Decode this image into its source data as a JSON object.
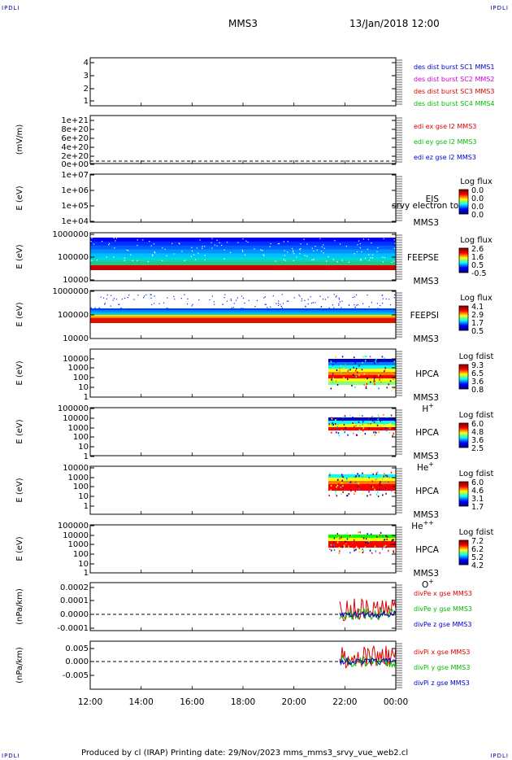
{
  "header": {
    "corner_label": "IPDLI",
    "spacecraft": "MMS3",
    "datetime": "13/Jan/2018 12:00"
  },
  "footer": {
    "text": "Produced by cl (IRAP)   Printing date: 29/Nov/2023   mms_mms3_srvy_vue_web2.cl"
  },
  "chart_data": [
    {
      "id": "panel1",
      "type": "line",
      "yticks": [
        "4",
        "3",
        "2",
        "1"
      ],
      "legend": [
        {
          "text": "des dist burst SC1 MMS1",
          "color": "#0000cc"
        },
        {
          "text": "des dist burst SC2 MMS2",
          "color": "#cc00cc"
        },
        {
          "text": "des dist burst SC3 MMS3",
          "color": "#dd0000"
        },
        {
          "text": "des dist burst SC4 MMS4",
          "color": "#00bb00"
        }
      ]
    },
    {
      "id": "panel2",
      "type": "line",
      "ylabel": "(mV/m)",
      "yticks": [
        "1e+21",
        "8e+20",
        "6e+20",
        "4e+20",
        "2e+20",
        "0e+00"
      ],
      "legend": [
        {
          "text": "edi ex gse l2 MMS3",
          "color": "#dd0000"
        },
        {
          "text": "edi ey gse l2 MMS3",
          "color": "#00bb00"
        },
        {
          "text": "edi ez gse l2 MMS3",
          "color": "#0000cc"
        }
      ]
    },
    {
      "id": "panel3",
      "type": "heatmap",
      "ylabel": "E (eV)",
      "yticks": [
        "1e+07",
        "1e+06",
        "1e+05",
        "1e+04"
      ],
      "instrument": [
        "EIS",
        "MMS3"
      ],
      "overlay": "srvy electron to",
      "colorbar": {
        "title": "Log flux",
        "ticks": [
          "0.0",
          "0.0",
          "0.0",
          "0.0"
        ]
      }
    },
    {
      "id": "panel4",
      "type": "heatmap",
      "ylabel": "E (eV)",
      "yticks": [
        "1000000",
        "100000",
        "10000"
      ],
      "instrument": [
        "FEEPSE",
        "MMS3"
      ],
      "colorbar": {
        "title": "Log flux",
        "ticks": [
          "2.6",
          "1.6",
          "0.5",
          "-0.5"
        ]
      }
    },
    {
      "id": "panel5",
      "type": "heatmap",
      "ylabel": "E (eV)",
      "yticks": [
        "1000000",
        "100000",
        "10000"
      ],
      "instrument": [
        "FEEPSI",
        "MMS3"
      ],
      "colorbar": {
        "title": "Log flux",
        "ticks": [
          "4.1",
          "2.9",
          "1.7",
          "0.5"
        ]
      }
    },
    {
      "id": "panel6",
      "type": "heatmap",
      "ylabel": "E (eV)",
      "yticks": [
        "10000",
        "1000",
        "100",
        "10",
        "1"
      ],
      "instrument": [
        "HPCA",
        "MMS3"
      ],
      "species": "H",
      "charge": "+",
      "colorbar": {
        "title": "Log fdist",
        "ticks": [
          "9.3",
          "6.5",
          "3.6",
          "0.8"
        ]
      }
    },
    {
      "id": "panel7",
      "type": "heatmap",
      "ylabel": "E (eV)",
      "yticks": [
        "100000",
        "10000",
        "1000",
        "100",
        "10",
        "1"
      ],
      "instrument": [
        "HPCA",
        "MMS3"
      ],
      "species": "He",
      "charge": "+",
      "colorbar": {
        "title": "Log fdist",
        "ticks": [
          "6.0",
          "4.8",
          "3.6",
          "2.5"
        ]
      }
    },
    {
      "id": "panel8",
      "type": "heatmap",
      "ylabel": "E (eV)",
      "yticks": [
        "10000",
        "1000",
        "100",
        "10",
        "1"
      ],
      "instrument": [
        "HPCA",
        "MMS3"
      ],
      "species": "He",
      "charge": "++",
      "colorbar": {
        "title": "Log fdist",
        "ticks": [
          "6.0",
          "4.6",
          "3.1",
          "1.7"
        ]
      }
    },
    {
      "id": "panel9",
      "type": "heatmap",
      "ylabel": "E (eV)",
      "yticks": [
        "100000",
        "10000",
        "1000",
        "100",
        "10",
        "1"
      ],
      "instrument": [
        "HPCA",
        "MMS3"
      ],
      "species": "O",
      "charge": "+",
      "colorbar": {
        "title": "Log fdist",
        "ticks": [
          "7.2",
          "6.2",
          "5.2",
          "4.2"
        ]
      }
    },
    {
      "id": "panel10",
      "type": "line",
      "ylabel": "(nPa/km)",
      "yticks": [
        "0.0002",
        "0.0001",
        "0.0000",
        "-0.0001"
      ],
      "legend": [
        {
          "text": "divPe x gse MMS3",
          "color": "#dd0000"
        },
        {
          "text": "divPe y gse MMS3",
          "color": "#00bb00"
        },
        {
          "text": "divPe z gse MMS3",
          "color": "#0000cc"
        }
      ]
    },
    {
      "id": "panel11",
      "type": "line",
      "ylabel": "(nPa/km)",
      "yticks": [
        "0.005",
        "0.000",
        "-0.005"
      ],
      "legend": [
        {
          "text": "divPi x gse MMS3",
          "color": "#dd0000"
        },
        {
          "text": "divPi y gse MMS3",
          "color": "#00bb00"
        },
        {
          "text": "divPi z gse MMS3",
          "color": "#0000cc"
        }
      ]
    }
  ],
  "xaxis": {
    "ticks": [
      "12:00",
      "14:00",
      "16:00",
      "18:00",
      "20:00",
      "22:00",
      "00:00"
    ]
  }
}
